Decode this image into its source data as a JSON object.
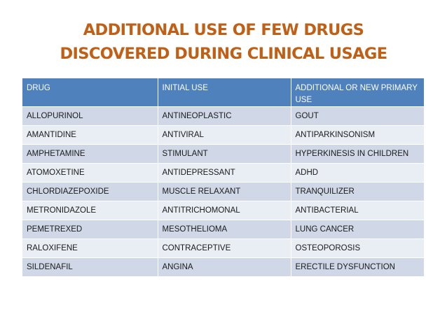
{
  "title": {
    "line1": "ADDITIONAL USE OF FEW DRUGS",
    "line2": "DISCOVERED DURING CLINICAL USAGE"
  },
  "colors": {
    "title": "#c05f16",
    "header_bg": "#4f81bd",
    "row_dark": "#d0d8e8",
    "row_light": "#e9edf4"
  },
  "table": {
    "headers": [
      "DRUG",
      "INITIAL USE",
      "ADDITIONAL OR NEW PRIMARY USE"
    ],
    "rows": [
      [
        "ALLOPURINOL",
        "ANTINEOPLASTIC",
        "GOUT"
      ],
      [
        "AMANTIDINE",
        "ANTIVIRAL",
        "ANTIPARKINSONISM"
      ],
      [
        "AMPHETAMINE",
        "STIMULANT",
        "HYPERKINESIS IN CHILDREN"
      ],
      [
        "ATOMOXETINE",
        "ANTIDEPRESSANT",
        "ADHD"
      ],
      [
        "CHLORDIAZEPOXIDE",
        "MUSCLE RELAXANT",
        "TRANQUILIZER"
      ],
      [
        "METRONIDAZOLE",
        "ANTITRICHOMONAL",
        "ANTIBACTERIAL"
      ],
      [
        "PEMETREXED",
        "MESOTHELIOMA",
        "LUNG CANCER"
      ],
      [
        "RALOXIFENE",
        "CONTRACEPTIVE",
        "OSTEOPOROSIS"
      ],
      [
        "SILDENAFIL",
        "ANGINA",
        "ERECTILE DYSFUNCTION"
      ]
    ]
  }
}
